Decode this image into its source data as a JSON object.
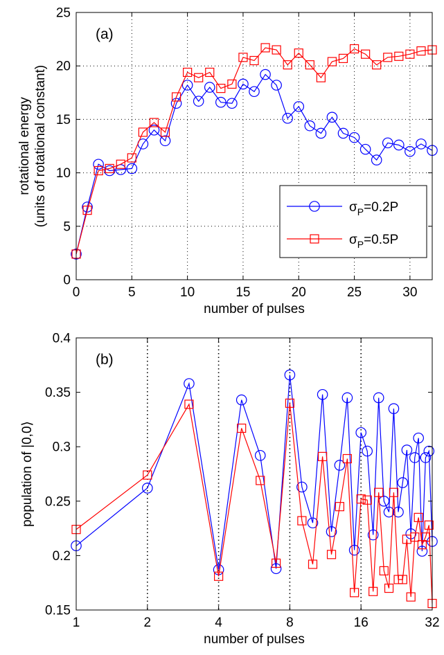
{
  "chart_data": [
    {
      "type": "line",
      "panel_label": "(a)",
      "xlabel": "number of pulses",
      "ylabel_line1": "rotational energy",
      "ylabel_line2": "(units of rotational constant)",
      "xlim": [
        0,
        32
      ],
      "ylim": [
        0,
        25
      ],
      "x_ticks": [
        0,
        5,
        10,
        15,
        20,
        25,
        30
      ],
      "y_ticks": [
        0,
        5,
        10,
        15,
        20,
        25
      ],
      "grid": "dotted",
      "legend_position": "lower-right",
      "x": [
        0,
        1,
        2,
        3,
        4,
        5,
        6,
        7,
        8,
        9,
        10,
        11,
        12,
        13,
        14,
        15,
        16,
        17,
        18,
        19,
        20,
        21,
        22,
        23,
        24,
        25,
        26,
        27,
        28,
        29,
        30,
        31,
        32
      ],
      "series": [
        {
          "name": "σP=0.2P",
          "legend_main": "σ",
          "legend_sub": "P",
          "legend_rest": "=0.2P",
          "color": "#0000ff",
          "marker": "circle",
          "values": [
            2.4,
            6.8,
            10.8,
            10.2,
            10.3,
            10.4,
            12.7,
            14.0,
            13.0,
            16.5,
            18.2,
            16.7,
            18.0,
            16.6,
            16.5,
            18.3,
            17.6,
            19.2,
            18.2,
            15.1,
            16.2,
            14.4,
            13.7,
            15.2,
            13.7,
            13.3,
            12.2,
            11.2,
            12.8,
            12.6,
            12.0,
            12.7,
            12.1
          ]
        },
        {
          "name": "σP=0.5P",
          "legend_main": "σ",
          "legend_sub": "P",
          "legend_rest": "=0.5P",
          "color": "#ff0000",
          "marker": "square",
          "values": [
            2.4,
            6.5,
            10.2,
            10.4,
            10.8,
            11.4,
            13.8,
            14.7,
            13.8,
            17.1,
            19.4,
            18.9,
            19.4,
            17.9,
            18.3,
            20.8,
            20.5,
            21.7,
            21.5,
            20.1,
            21.2,
            20.1,
            18.9,
            20.4,
            20.7,
            21.6,
            21.1,
            20.1,
            20.8,
            20.9,
            21.1,
            21.4,
            21.5
          ]
        }
      ]
    },
    {
      "type": "line",
      "panel_label": "(b)",
      "xlabel": "number of pulses",
      "ylabel": "population of |0,0⟩",
      "xscale": "log2",
      "xlim": [
        1,
        32
      ],
      "ylim": [
        0.15,
        0.4
      ],
      "x_ticks": [
        1,
        2,
        4,
        8,
        16,
        32
      ],
      "y_ticks": [
        0.15,
        0.2,
        0.25,
        0.3,
        0.35,
        0.4
      ],
      "grid": "dotted vertical at x ticks",
      "x": [
        1,
        2,
        3,
        4,
        5,
        6,
        7,
        8,
        9,
        10,
        11,
        12,
        13,
        14,
        15,
        16,
        17,
        18,
        19,
        20,
        21,
        22,
        23,
        24,
        25,
        26,
        27,
        28,
        29,
        30,
        31,
        32
      ],
      "series": [
        {
          "name": "σP=0.2P",
          "color": "#0000ff",
          "marker": "circle",
          "values": [
            0.209,
            0.262,
            0.358,
            0.187,
            0.343,
            0.292,
            0.188,
            0.366,
            0.263,
            0.23,
            0.348,
            0.222,
            0.283,
            0.345,
            0.205,
            0.313,
            0.296,
            0.219,
            0.345,
            0.25,
            0.24,
            0.335,
            0.24,
            0.267,
            0.297,
            0.22,
            0.29,
            0.308,
            0.204,
            0.29,
            0.296,
            0.213
          ]
        },
        {
          "name": "σP=0.5P",
          "color": "#ff0000",
          "marker": "square",
          "values": [
            0.224,
            0.274,
            0.339,
            0.181,
            0.317,
            0.269,
            0.193,
            0.34,
            0.232,
            0.192,
            0.291,
            0.201,
            0.245,
            0.289,
            0.166,
            0.252,
            0.251,
            0.167,
            0.258,
            0.186,
            0.17,
            0.258,
            0.178,
            0.178,
            0.215,
            0.162,
            0.217,
            0.235,
            0.21,
            0.217,
            0.228,
            0.156
          ]
        }
      ]
    }
  ]
}
